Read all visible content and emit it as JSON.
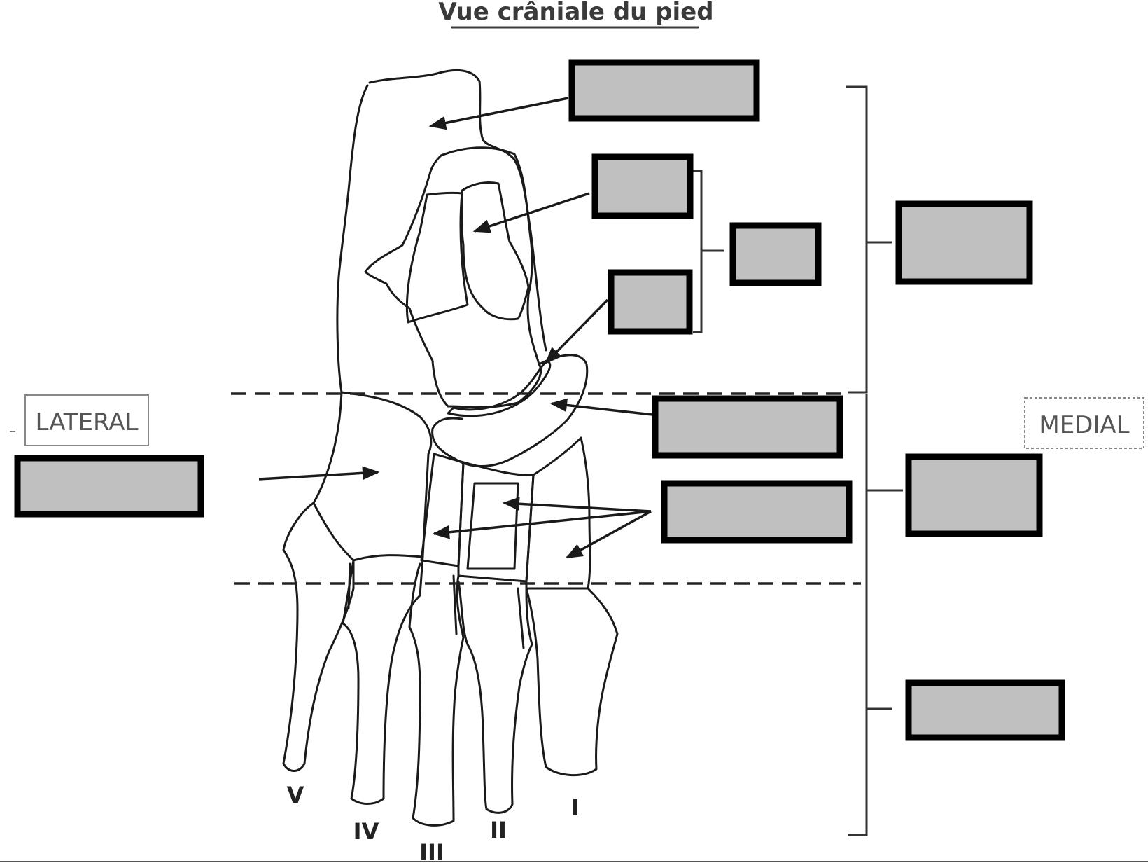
{
  "title": "Vue crâniale du pied",
  "orientation": {
    "lateral": "LATERAL",
    "medial": "MEDIAL"
  },
  "metatarsals": [
    "V",
    "IV",
    "III",
    "II",
    "I"
  ],
  "label_boxes": [
    {
      "id": "box-calcaneus",
      "text": ""
    },
    {
      "id": "box-talus-trochlea",
      "text": ""
    },
    {
      "id": "box-talus-head",
      "text": ""
    },
    {
      "id": "box-talus-group",
      "text": ""
    },
    {
      "id": "box-tarsus",
      "text": ""
    },
    {
      "id": "box-navicular",
      "text": ""
    },
    {
      "id": "box-cuneiforms",
      "text": ""
    },
    {
      "id": "box-cuboid",
      "text": ""
    },
    {
      "id": "box-middle-tarsus",
      "text": ""
    },
    {
      "id": "box-metatarsus",
      "text": ""
    }
  ],
  "colors": {
    "box_fill": "#c0c0c0",
    "box_border": "#000000",
    "shaded_facet": "#b8b8b8"
  }
}
